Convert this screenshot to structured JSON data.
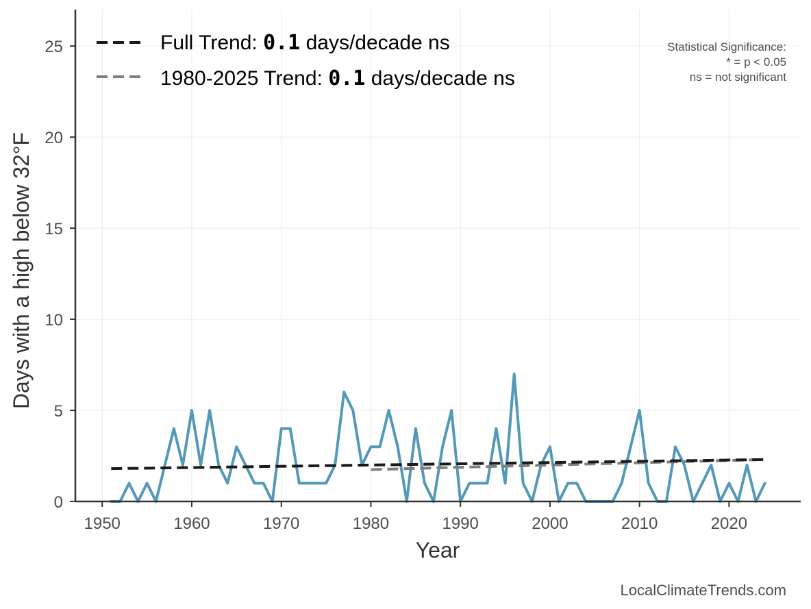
{
  "chart_data": {
    "type": "line",
    "xlabel": "Year",
    "ylabel": "Days with a high below 32°F",
    "xlim": [
      1947,
      2028
    ],
    "ylim": [
      0,
      27
    ],
    "x_ticks": [
      1950,
      1960,
      1970,
      1980,
      1990,
      2000,
      2010,
      2020
    ],
    "y_ticks": [
      0,
      5,
      10,
      15,
      20,
      25
    ],
    "grid": true,
    "series": [
      {
        "name": "Days with a high below 32°F",
        "color": "#5499b8",
        "x": [
          1951,
          1952,
          1953,
          1954,
          1955,
          1956,
          1957,
          1958,
          1959,
          1960,
          1961,
          1962,
          1963,
          1964,
          1965,
          1966,
          1967,
          1968,
          1969,
          1970,
          1971,
          1972,
          1973,
          1974,
          1975,
          1976,
          1977,
          1978,
          1979,
          1980,
          1981,
          1982,
          1983,
          1984,
          1985,
          1986,
          1987,
          1988,
          1989,
          1990,
          1991,
          1992,
          1993,
          1994,
          1995,
          1996,
          1997,
          1998,
          1999,
          2000,
          2001,
          2002,
          2003,
          2004,
          2005,
          2006,
          2007,
          2008,
          2009,
          2010,
          2011,
          2012,
          2013,
          2014,
          2015,
          2016,
          2017,
          2018,
          2019,
          2020,
          2021,
          2022,
          2023,
          2024
        ],
        "values": [
          0,
          0,
          1,
          0,
          1,
          0,
          2,
          4,
          2,
          5,
          2,
          5,
          2,
          1,
          3,
          2,
          1,
          1,
          0,
          4,
          4,
          1,
          1,
          1,
          1,
          2,
          6,
          5,
          2,
          3,
          3,
          5,
          3,
          0,
          4,
          1,
          0,
          3,
          5,
          0,
          1,
          1,
          1,
          4,
          1,
          7,
          1,
          0,
          2,
          3,
          0,
          1,
          1,
          0,
          0,
          0,
          0,
          1,
          3,
          5,
          1,
          0,
          0,
          3,
          2,
          0,
          1,
          2,
          0,
          1,
          0,
          2,
          0,
          1
        ]
      },
      {
        "name": "Full Trend",
        "color": "#1a1a1a",
        "dashed": true,
        "x": [
          1951,
          2024
        ],
        "values": [
          1.8,
          2.3
        ]
      },
      {
        "name": "1980-2025 Trend",
        "color": "#7f7f7f",
        "dashed": true,
        "x": [
          1980,
          2024
        ],
        "values": [
          1.75,
          2.3
        ]
      }
    ],
    "legend": {
      "position": "top-left",
      "full_prefix": "Full Trend: ",
      "full_value": "0.1",
      "full_suffix": " days/decade ns",
      "recent_prefix": "1980-2025 Trend: ",
      "recent_value": "0.1",
      "recent_suffix": " days/decade ns"
    },
    "significance_note": {
      "line1": "Statistical Significance:",
      "line2": "* = p < 0.05",
      "line3": "ns = not significant"
    }
  },
  "source": "LocalClimateTrends.com"
}
